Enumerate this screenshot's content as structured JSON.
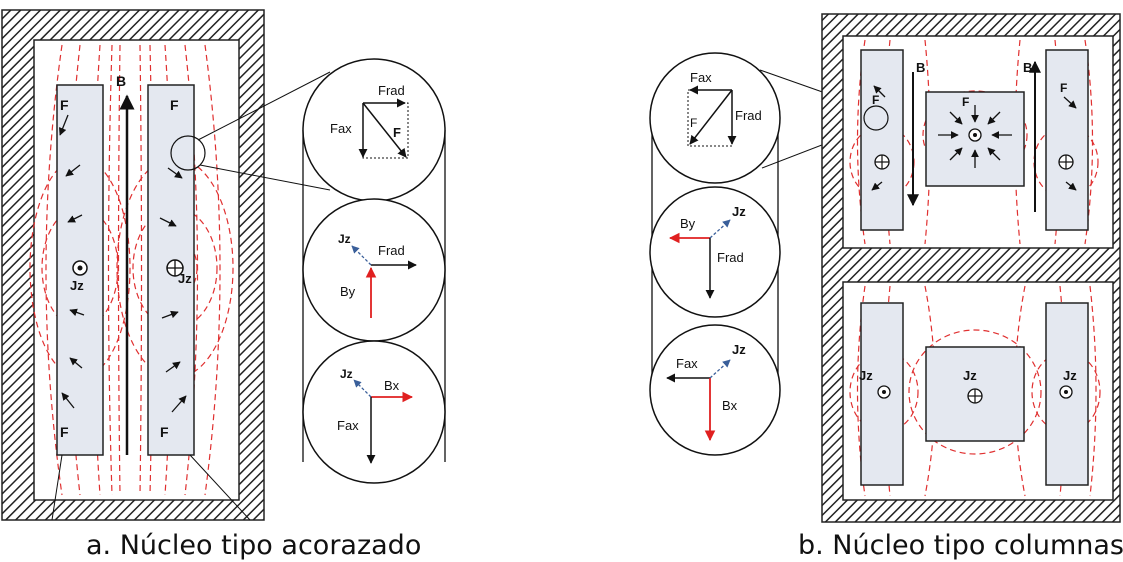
{
  "captions": {
    "a": "a. Núcleo tipo acorazado",
    "b": "b. Núcleo tipo columnas"
  },
  "labels": {
    "F": "F",
    "B": "B",
    "Jz": "Jz",
    "Frad": "Frad",
    "Fax": "Fax",
    "By": "By",
    "Bx": "Bx"
  },
  "colors": {
    "field_lines": "#e03030",
    "coil_fill": "#e4e8f0",
    "arrow": "#111111",
    "vector_red": "#e02020",
    "vector_blue": "#3a5f9a"
  }
}
